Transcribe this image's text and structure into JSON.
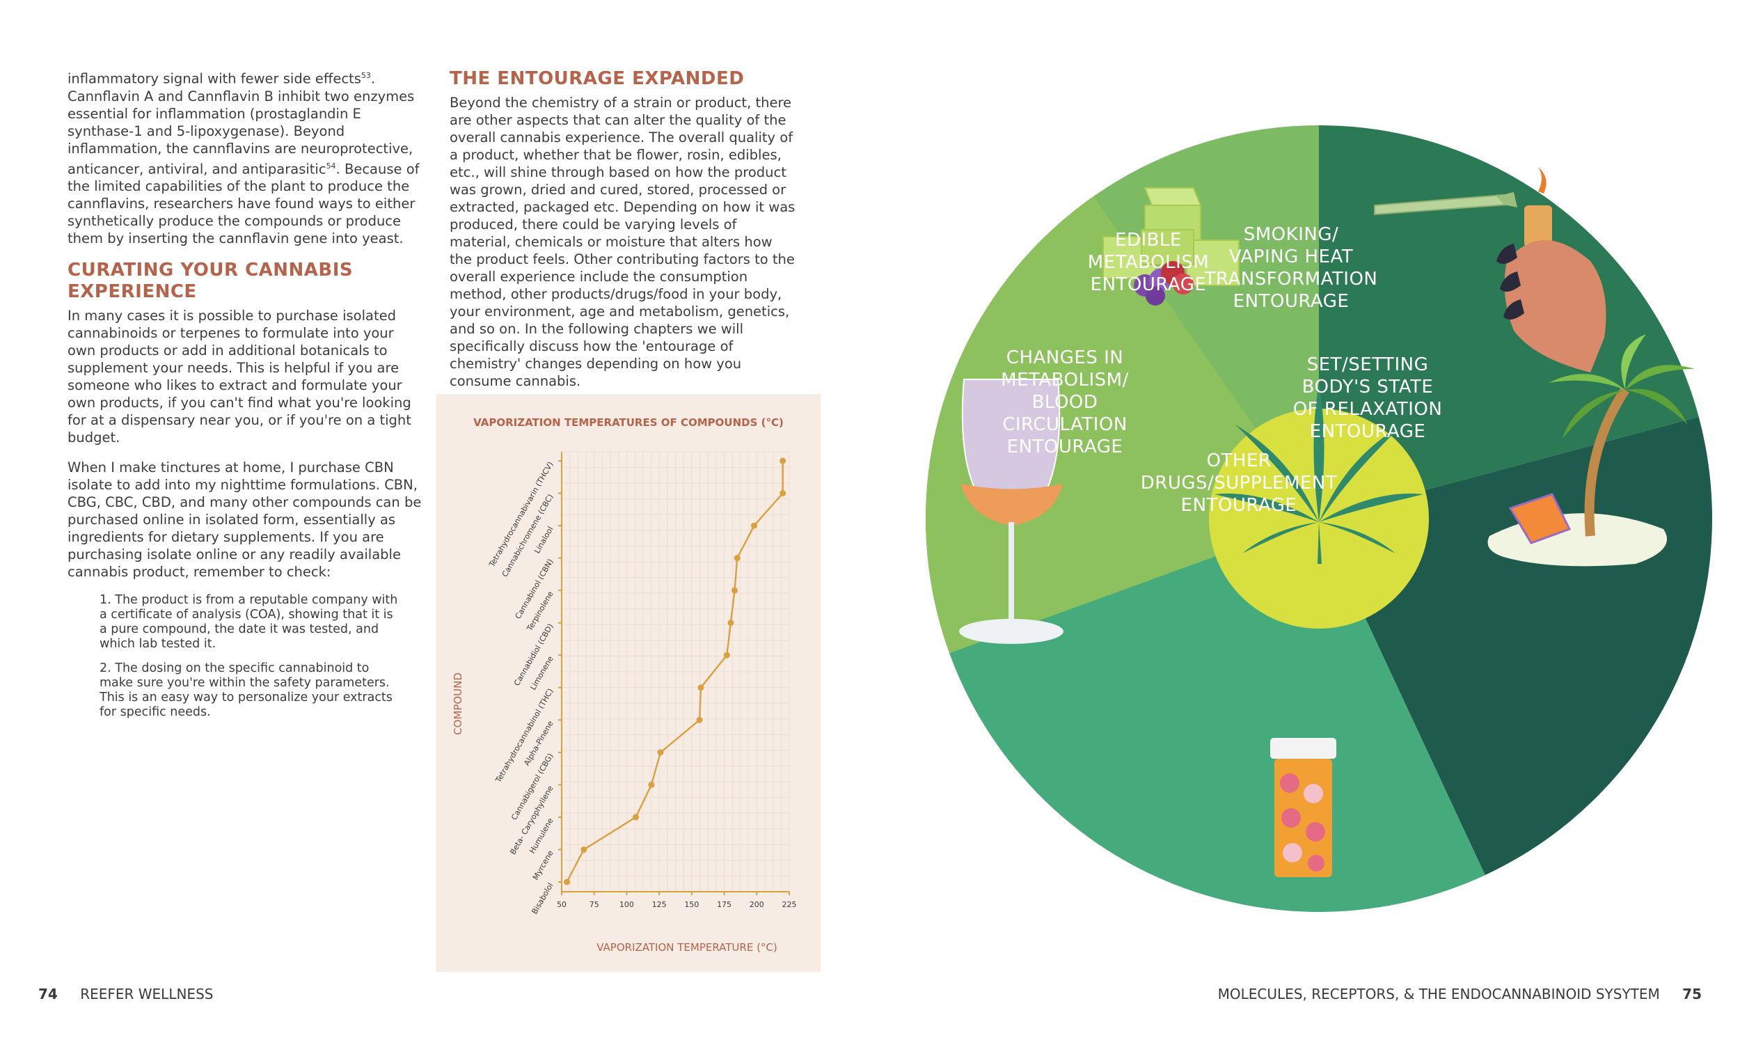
{
  "left_page": {
    "intro_text": [
      "inflammatory signal with fewer side effects",
      "53",
      ". Cannflavin A and Cannflavin B inhibit two enzymes essential for inflammation (prostaglandin E synthase-1 and 5-lipoxygenase). Beyond inflammation, the cannflavins are neuroprotective, anticancer, antiviral, and antiparasitic",
      "54",
      ". Because of the limited capabilities of the plant to produce the cannflavins, researchers have found ways to either synthetically produce the compounds or produce them by inserting the cannflavin gene into yeast."
    ],
    "curating_heading": "CURATING YOUR CANNABIS EXPERIENCE",
    "curating_p1": "In many cases it is possible to purchase isolated cannabinoids or terpenes to formulate into your own products or add in additional botanicals to supplement your needs. This is helpful if you are someone who likes to extract and formulate your own products, if you can't find what you're looking for at a dispensary near you, or if you're on a tight budget.",
    "curating_p2": "When I make tinctures at home, I purchase CBN isolate to add into my nighttime formulations. CBN, CBG, CBC, CBD, and many other compounds can be purchased online in isolated form, essentially as ingredients for dietary supplements. If you are purchasing isolate online or any readily available cannabis product, remember to check:",
    "check_1": "1. The product is from a reputable company with a certificate of analysis (COA), showing that it is a pure compound, the date it was tested, and which lab tested it.",
    "check_2": "2. The dosing on the specific cannabinoid to make sure you're within the safety parameters. This is an easy way to personalize your extracts for specific needs.",
    "entourage_heading": "THE ENTOURAGE EXPANDED",
    "entourage_p": "Beyond the chemistry of a strain or product, there are other aspects that can alter the quality of the overall cannabis experience. The overall quality of a product, whether that be flower, rosin, edibles, etc., will shine through based on how the product was grown, dried and cured, stored, processed or extracted, packaged etc. Depending on how it was produced, there could be varying levels of material, chemicals or moisture that alters how the product feels. Other contributing factors to the overall experience include the consumption method, other products/drugs/food in your body, your environment, age and metabolism, genetics, and so on.  In the following chapters we will specifically discuss how the 'entourage of chemistry' changes depending on how you consume cannabis."
  },
  "chart_data": {
    "type": "line",
    "title": "VAPORIZATION TEMPERATURES OF COMPOUNDS (°C)",
    "xlabel": "VAPORIZATION TEMPERATURE (°C)",
    "ylabel": "COMPOUND",
    "xlim": [
      50,
      225
    ],
    "xticks": [
      50,
      75,
      100,
      125,
      150,
      175,
      200,
      225
    ],
    "categories": [
      "Bisabolol",
      "Myrcene",
      "Humulene",
      "Beta- Caryophyllene",
      "Cannabigerol (CBG)",
      "Alpha-Pinene",
      "Tetrahydrocannabinol (THC)",
      "Limonene",
      "Cannabidiol (CBD)",
      "Terpinolene",
      "Cannabinol (CBN)",
      "Linalool",
      "Cannabichromene (CBC)",
      "Tetrahydrocannabivarin (THCV)"
    ],
    "values": [
      54,
      67,
      107,
      119,
      126,
      156,
      157,
      177,
      180,
      183,
      185,
      198,
      220,
      220
    ],
    "color": "#d9a03c",
    "grid": true
  },
  "wheel": {
    "center_color": "#d8e040",
    "segments": [
      {
        "label": [
          "EDIBLE",
          "METABOLISM",
          "ENTOURAGE"
        ],
        "color": "#7cba64"
      },
      {
        "label": [
          "SMOKING/",
          "VAPING HEAT",
          "TRANSFORMATION",
          "ENTOURAGE"
        ],
        "color": "#2b7a55"
      },
      {
        "label": [
          "SET/SETTING",
          "BODY'S STATE",
          "OF RELAXATION",
          "ENTOURAGE"
        ],
        "color": "#1e5b4c"
      },
      {
        "label": [
          "OTHER",
          "DRUGS/SUPPLEMENT",
          "ENTOURAGE"
        ],
        "color": "#45ab7c"
      },
      {
        "label": [
          "CHANGES IN",
          "METABOLISM/",
          "BLOOD",
          "CIRCULATION",
          "ENTOURAGE"
        ],
        "color": "#8cc15d"
      }
    ],
    "icons": [
      "cannabis-leaf-icon",
      "gummy-cubes-icon",
      "joint-and-lighter-icon",
      "palm-island-icon",
      "pill-bottle-icon",
      "wine-glass-icon"
    ]
  },
  "footer": {
    "left_page_number": "74",
    "left_title": "REEFER WELLNESS",
    "right_title": "MOLECULES, RECEPTORS, & THE ENDOCANNABINOID SYSYTEM",
    "right_page_number": "75"
  }
}
